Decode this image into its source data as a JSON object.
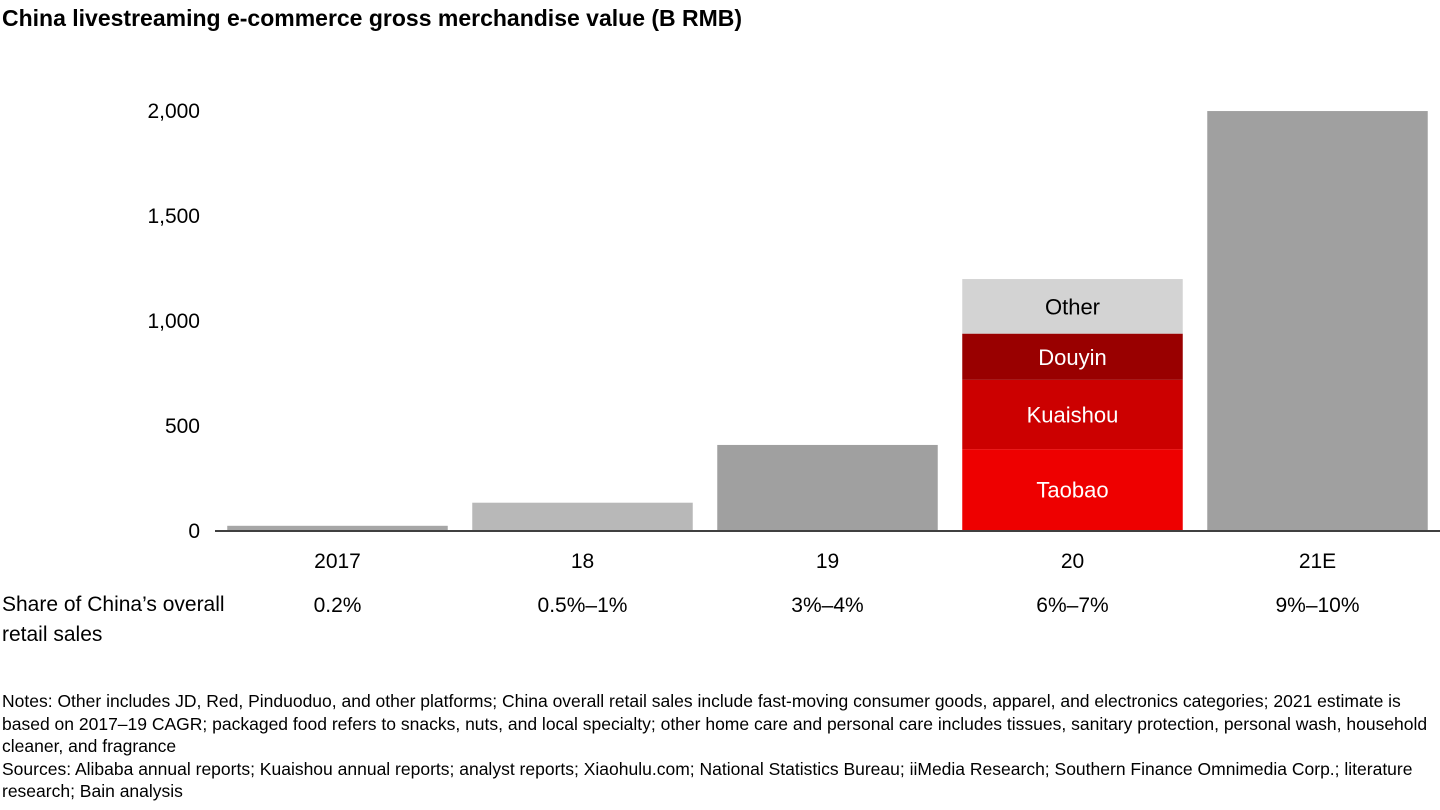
{
  "title": "China livestreaming e-commerce gross merchandise value (B RMB)",
  "chart_data": {
    "type": "bar",
    "stacked_categories": [
      "20"
    ],
    "categories": [
      "2017",
      "18",
      "19",
      "20",
      "21E"
    ],
    "values": [
      20,
      130,
      405,
      1195,
      1995
    ],
    "ylim": [
      0,
      2000
    ],
    "yticks": [
      0,
      500,
      1000,
      1500,
      2000
    ],
    "ytick_labels": [
      "0",
      "500",
      "1,000",
      "1,500",
      "2,000"
    ],
    "bar_colors": [
      "#a6a6a6",
      "#b8b8b8",
      "#a0a0a0",
      "#e00000",
      "#a0a0a0"
    ],
    "stack": {
      "category": "20",
      "segments": [
        {
          "name": "Taobao",
          "value": 385,
          "color": "#ee0000",
          "text_color": "#ffffff"
        },
        {
          "name": "Kuaishou",
          "value": 330,
          "color": "#cc0000",
          "text_color": "#ffffff"
        },
        {
          "name": "Douyin",
          "value": 220,
          "color": "#990000",
          "text_color": "#ffffff"
        },
        {
          "name": "Other",
          "value": 260,
          "color": "#d3d3d3",
          "text_color": "#000000"
        }
      ]
    },
    "share_row": {
      "label": "Share of China’s overall retail sales",
      "values": [
        "0.2%",
        "0.5%–1%",
        "3%–4%",
        "6%–7%",
        "9%–10%"
      ]
    },
    "grid": false,
    "legend": "none"
  },
  "notes": "Notes: Other includes JD, Red, Pinduoduo, and other platforms; China overall retail sales include fast-moving consumer goods, apparel, and electronics categories; 2021 estimate is based on 2017–19 CAGR; packaged food refers to snacks, nuts, and local specialty; other home care and personal care includes tissues, sanitary protection, personal wash, household cleaner, and fragrance",
  "sources": "Sources: Alibaba annual reports; Kuaishou annual reports; analyst reports; Xiaohulu.com; National Statistics Bureau; iiMedia Research; Southern Finance Omnimedia Corp.; literature research; Bain analysis"
}
